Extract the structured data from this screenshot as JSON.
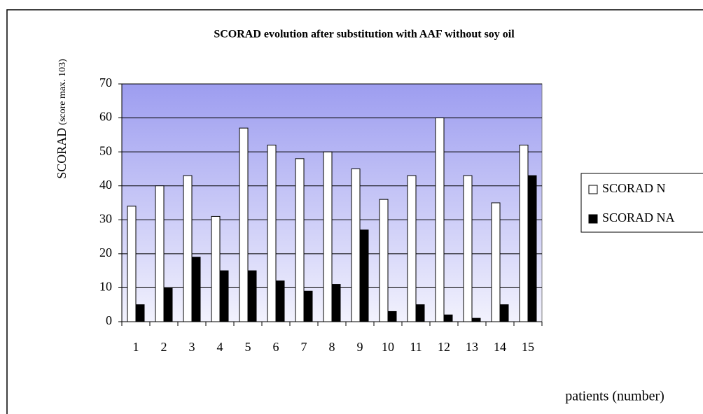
{
  "chart_data": {
    "type": "bar",
    "title": "SCORAD evolution after substitution with AAF without soy oil",
    "ylabel": "SCORAD",
    "ylabel_note": "(score max. 103)",
    "xlabel": "patients (number)",
    "categories": [
      "1",
      "2",
      "3",
      "4",
      "5",
      "6",
      "7",
      "8",
      "9",
      "10",
      "11",
      "12",
      "13",
      "14",
      "15"
    ],
    "series": [
      {
        "name": "SCORAD N",
        "color": "#ffffff",
        "values": [
          34,
          40,
          43,
          31,
          57,
          52,
          48,
          50,
          45,
          36,
          43,
          60,
          43,
          35,
          52
        ]
      },
      {
        "name": "SCORAD NA",
        "color": "#000000",
        "values": [
          5,
          10,
          19,
          15,
          15,
          12,
          9,
          11,
          27,
          3,
          5,
          2,
          1,
          5,
          43
        ]
      }
    ],
    "ylim": [
      0,
      70
    ],
    "yticks": [
      0,
      10,
      20,
      30,
      40,
      50,
      60,
      70
    ],
    "grid": true,
    "legend": "right"
  }
}
